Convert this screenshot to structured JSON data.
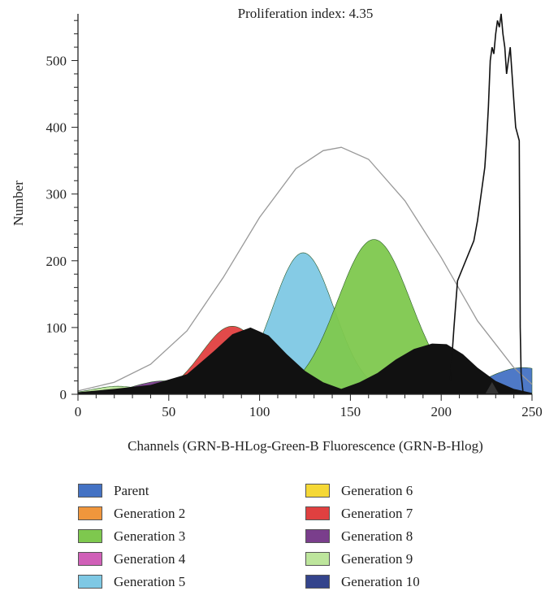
{
  "chart_data": {
    "type": "area",
    "title": "Proliferation index: 4.35",
    "xlabel": "Channels (GRN-B-HLog-Green-B Fluorescence (GRN-B-Hlog)",
    "ylabel": "Number",
    "xlim": [
      0,
      250
    ],
    "ylim": [
      0,
      570
    ],
    "xticks": [
      0,
      50,
      100,
      150,
      200,
      250
    ],
    "yticks": [
      0,
      100,
      200,
      300,
      400,
      500
    ],
    "marker_x": 228,
    "series": [
      {
        "name": "Parent",
        "color": "#4472c4",
        "peak": 245,
        "sd": 20,
        "amp": 40
      },
      {
        "name": "Generation 2",
        "color": "#f0963c",
        "peak": 0,
        "sd": 1,
        "amp": 0
      },
      {
        "name": "Generation 3",
        "color": "#7ec84e",
        "peak": 163,
        "sd": 20,
        "amp": 232
      },
      {
        "name": "Generation 4",
        "color": "#d060b8",
        "peak": 0,
        "sd": 1,
        "amp": 0
      },
      {
        "name": "Generation 5",
        "color": "#7ec8e4",
        "peak": 124,
        "sd": 17,
        "amp": 212
      },
      {
        "name": "Generation 6",
        "color": "#f5d836",
        "peak": 0,
        "sd": 1,
        "amp": 0
      },
      {
        "name": "Generation 7",
        "color": "#e04040",
        "peak": 85,
        "sd": 17,
        "amp": 102
      },
      {
        "name": "Generation 8",
        "color": "#7a3e8c",
        "peak": 47,
        "sd": 16,
        "amp": 20
      },
      {
        "name": "Generation 9",
        "color": "#bde59c",
        "peak": 22,
        "sd": 14,
        "amp": 12
      },
      {
        "name": "Generation 10",
        "color": "#34448c",
        "peak": 0,
        "sd": 1,
        "amp": 0
      }
    ],
    "black_fill": [
      [
        0,
        3
      ],
      [
        20,
        8
      ],
      [
        40,
        14
      ],
      [
        60,
        30
      ],
      [
        75,
        65
      ],
      [
        85,
        90
      ],
      [
        95,
        100
      ],
      [
        105,
        88
      ],
      [
        115,
        60
      ],
      [
        125,
        35
      ],
      [
        135,
        18
      ],
      [
        145,
        8
      ],
      [
        155,
        18
      ],
      [
        165,
        32
      ],
      [
        175,
        52
      ],
      [
        185,
        68
      ],
      [
        195,
        76
      ],
      [
        203,
        75
      ],
      [
        212,
        60
      ],
      [
        220,
        40
      ],
      [
        230,
        20
      ],
      [
        240,
        8
      ],
      [
        250,
        2
      ]
    ],
    "total_fit": [
      [
        0,
        5
      ],
      [
        20,
        18
      ],
      [
        40,
        45
      ],
      [
        60,
        95
      ],
      [
        80,
        175
      ],
      [
        100,
        265
      ],
      [
        120,
        338
      ],
      [
        135,
        365
      ],
      [
        145,
        370
      ],
      [
        160,
        352
      ],
      [
        180,
        290
      ],
      [
        200,
        205
      ],
      [
        220,
        110
      ],
      [
        240,
        40
      ],
      [
        250,
        15
      ]
    ],
    "observed": [
      [
        205,
        20
      ],
      [
        207,
        100
      ],
      [
        209,
        170
      ],
      [
        212,
        190
      ],
      [
        215,
        210
      ],
      [
        218,
        230
      ],
      [
        220,
        260
      ],
      [
        222,
        300
      ],
      [
        224,
        340
      ],
      [
        225,
        380
      ],
      [
        226,
        430
      ],
      [
        227,
        500
      ],
      [
        228,
        520
      ],
      [
        229,
        510
      ],
      [
        230,
        540
      ],
      [
        231,
        560
      ],
      [
        232,
        550
      ],
      [
        233,
        570
      ],
      [
        234,
        540
      ],
      [
        235,
        520
      ],
      [
        236,
        480
      ],
      [
        237,
        500
      ],
      [
        238,
        520
      ],
      [
        239,
        480
      ],
      [
        240,
        440
      ],
      [
        241,
        400
      ],
      [
        242,
        390
      ],
      [
        243,
        380
      ],
      [
        243.5,
        100
      ],
      [
        244,
        30
      ],
      [
        245,
        5
      ]
    ]
  }
}
